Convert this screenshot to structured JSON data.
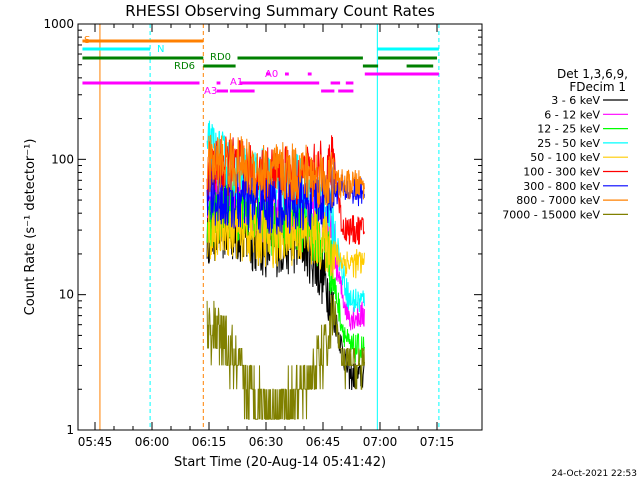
{
  "chart_data": {
    "type": "line",
    "title": "RHESSI Observing Summary Count Rates",
    "xlabel": "Start Time (20-Aug-14 05:41:42)",
    "ylabel": "Count Rate (s⁻¹ detector⁻¹)",
    "yscale": "log",
    "ylim": [
      1,
      1000
    ],
    "xlim_minutes": [
      41.7,
      125
    ],
    "x_ticks": [
      {
        "label": "05:45",
        "t": 45
      },
      {
        "label": "06:00",
        "t": 60
      },
      {
        "label": "06:15",
        "t": 75
      },
      {
        "label": "06:30",
        "t": 90
      },
      {
        "label": "06:45",
        "t": 105
      },
      {
        "label": "07:00",
        "t": 120
      },
      {
        "label": "07:15",
        "t": 135
      }
    ],
    "y_ticks": [
      {
        "label": "1",
        "v": 1
      },
      {
        "label": "10",
        "v": 10
      },
      {
        "label": "100",
        "v": 100
      },
      {
        "label": "1000",
        "v": 1000
      }
    ],
    "legend_title": [
      "Det 1,3,6,9,",
      "FDecim 1"
    ],
    "legend_placement": "right",
    "series": [
      {
        "name": "3 - 6 keV",
        "color": "#000000",
        "values": [
          [
            74.5,
            28
          ],
          [
            80,
            30
          ],
          [
            90,
            22
          ],
          [
            100,
            24
          ],
          [
            106,
            12
          ],
          [
            108,
            7
          ],
          [
            110,
            4
          ],
          [
            112,
            2.5
          ],
          [
            116,
            2.5
          ]
        ]
      },
      {
        "name": "6 - 12 keV",
        "color": "#ff00ff",
        "values": [
          [
            74.5,
            45
          ],
          [
            80,
            55
          ],
          [
            90,
            38
          ],
          [
            100,
            42
          ],
          [
            106,
            32
          ],
          [
            108,
            20
          ],
          [
            110,
            10
          ],
          [
            112,
            7
          ],
          [
            116,
            7
          ]
        ]
      },
      {
        "name": "12 - 25 keV",
        "color": "#00ff00",
        "values": [
          [
            74.5,
            35
          ],
          [
            80,
            45
          ],
          [
            90,
            32
          ],
          [
            100,
            34
          ],
          [
            106,
            22
          ],
          [
            108,
            12
          ],
          [
            110,
            6
          ],
          [
            112,
            4
          ],
          [
            116,
            4
          ]
        ]
      },
      {
        "name": "25 - 50 keV",
        "color": "#00ffff",
        "values": [
          [
            74.5,
            120
          ],
          [
            80,
            90
          ],
          [
            90,
            70
          ],
          [
            100,
            65
          ],
          [
            106,
            45
          ],
          [
            108,
            30
          ],
          [
            110,
            15
          ],
          [
            112,
            9
          ],
          [
            116,
            9
          ]
        ]
      },
      {
        "name": "50 - 100 keV",
        "color": "#ffcc00",
        "values": [
          [
            74.5,
            28
          ],
          [
            80,
            32
          ],
          [
            90,
            26
          ],
          [
            100,
            28
          ],
          [
            106,
            24
          ],
          [
            108,
            20
          ],
          [
            110,
            18
          ],
          [
            112,
            17
          ],
          [
            116,
            17
          ]
        ]
      },
      {
        "name": "100 - 300 keV",
        "color": "#ff0000",
        "values": [
          [
            74.5,
            80
          ],
          [
            80,
            90
          ],
          [
            90,
            75
          ],
          [
            100,
            75
          ],
          [
            106,
            85
          ],
          [
            108,
            95
          ],
          [
            110,
            32
          ],
          [
            112,
            30
          ],
          [
            116,
            30
          ]
        ]
      },
      {
        "name": "300 - 800 keV",
        "color": "#0000ff",
        "values": [
          [
            74.5,
            55
          ],
          [
            80,
            50
          ],
          [
            90,
            45
          ],
          [
            100,
            48
          ],
          [
            106,
            55
          ],
          [
            108,
            60
          ],
          [
            110,
            60
          ],
          [
            112,
            58
          ],
          [
            116,
            58
          ]
        ]
      },
      {
        "name": "800 - 7000 keV",
        "color": "#ff8000",
        "values": [
          [
            74.5,
            90
          ],
          [
            80,
            95
          ],
          [
            90,
            80
          ],
          [
            100,
            80
          ],
          [
            106,
            70
          ],
          [
            108,
            68
          ],
          [
            110,
            66
          ],
          [
            112,
            65
          ],
          [
            116,
            65
          ]
        ]
      },
      {
        "name": "7000 - 15000 keV",
        "color": "#808000",
        "values": [
          [
            74.5,
            6
          ],
          [
            80,
            4
          ],
          [
            85,
            2
          ],
          [
            90,
            1.5
          ],
          [
            95,
            1.5
          ],
          [
            100,
            2
          ],
          [
            106,
            4
          ],
          [
            108,
            8
          ],
          [
            110,
            3
          ],
          [
            116,
            3
          ]
        ]
      }
    ],
    "flags": [
      {
        "label": "S",
        "color": "#ff8000"
      },
      {
        "label": "N",
        "color": "#00ffff"
      },
      {
        "label": "RD0",
        "color": "#008000"
      },
      {
        "label": "RD6",
        "color": "#008000"
      },
      {
        "label": "A0",
        "color": "#ff00ff"
      },
      {
        "label": "A1",
        "color": "#ff00ff"
      },
      {
        "label": "A3",
        "color": "#ff00ff"
      }
    ]
  },
  "footer": {
    "timestamp": "24-Oct-2021 22:53"
  }
}
